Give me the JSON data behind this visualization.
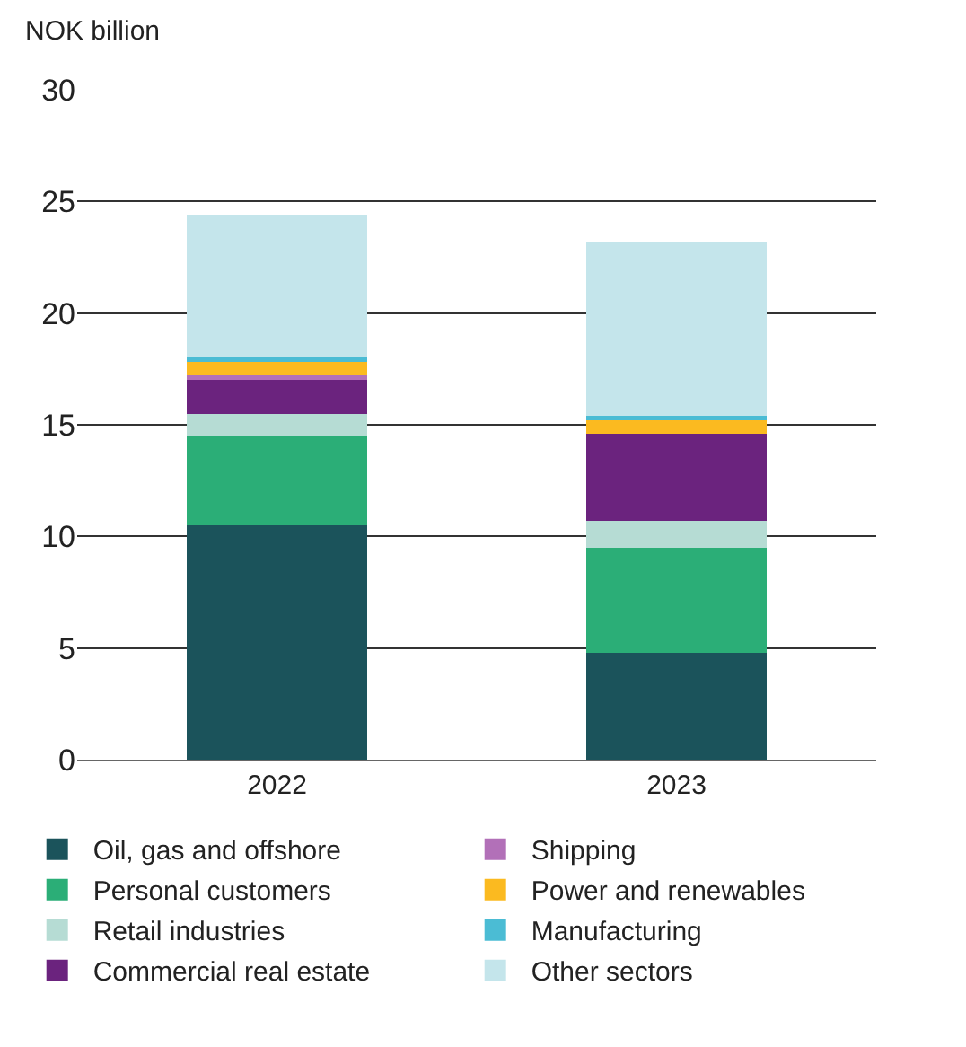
{
  "chart_data": {
    "type": "bar",
    "ylabel": "NOK billion",
    "categories": [
      "2022",
      "2023"
    ],
    "stacked": true,
    "ylim": [
      0,
      30
    ],
    "yticks": [
      0,
      5,
      10,
      15,
      20,
      25,
      30
    ],
    "grid": "y",
    "legend": "bottom",
    "series": [
      {
        "name": "Oil, gas and offshore",
        "color": "#1b535b",
        "values": [
          10.5,
          4.8
        ]
      },
      {
        "name": "Personal customers",
        "color": "#2bae77",
        "values": [
          4.0,
          4.7
        ]
      },
      {
        "name": "Retail industries",
        "color": "#b6dcd4",
        "values": [
          1.0,
          1.2
        ]
      },
      {
        "name": "Commercial real estate",
        "color": "#6b237e",
        "values": [
          1.5,
          3.9
        ]
      },
      {
        "name": "Shipping",
        "color": "#b270b8",
        "values": [
          0.2,
          0
        ]
      },
      {
        "name": "Power and renewables",
        "color": "#fbba20",
        "values": [
          0.6,
          0.6
        ]
      },
      {
        "name": "Manufacturing",
        "color": "#4bbcd4",
        "values": [
          0.2,
          0.2
        ]
      },
      {
        "name": "Other sectors",
        "color": "#c4e5eb",
        "values": [
          6.4,
          7.8
        ]
      }
    ]
  }
}
